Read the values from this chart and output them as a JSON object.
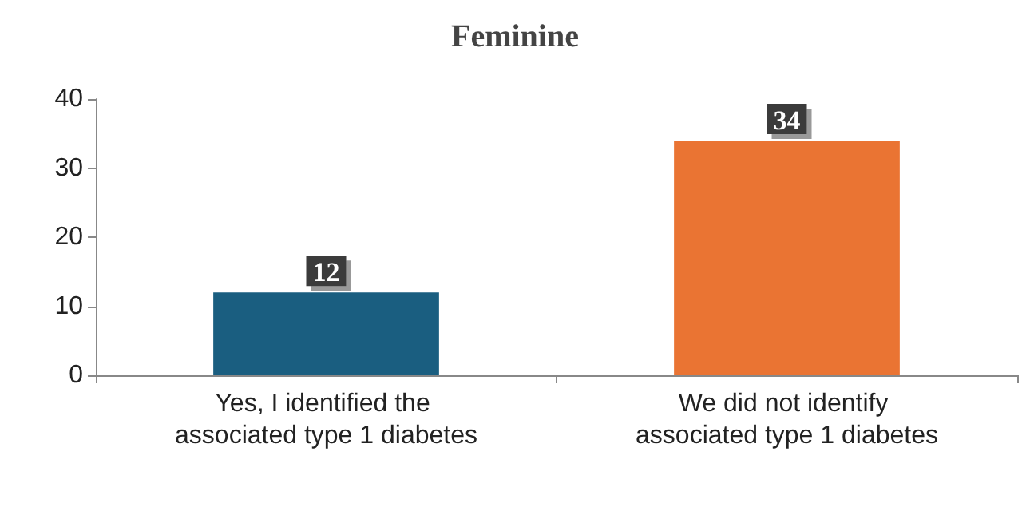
{
  "chart_data": {
    "type": "bar",
    "title": "Feminine",
    "categories": [
      "Yes, I identified the associated type 1 diabetes",
      "We did not identify associated type 1 diabetes"
    ],
    "values": [
      12,
      34
    ],
    "colors": [
      "#1a5e80",
      "#ea7433"
    ],
    "ylim": [
      0,
      40
    ],
    "yticks": [
      0,
      10,
      20,
      30,
      40
    ],
    "grid": false,
    "data_labels": true
  }
}
